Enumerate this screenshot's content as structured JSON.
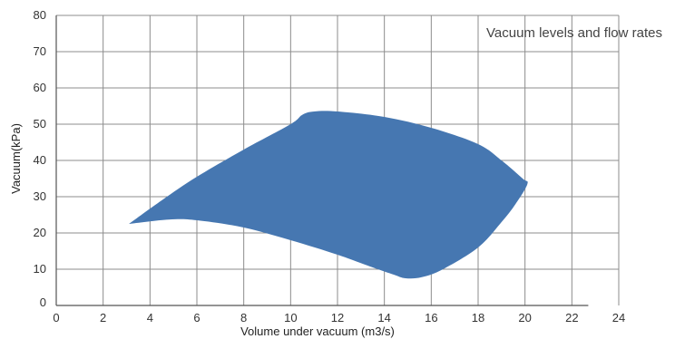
{
  "chart_data": {
    "type": "area",
    "title": "Vacuum levels and flow rates",
    "xlabel": "Volume under vacuum (m3/s)",
    "ylabel": "Vacuum(kPa)",
    "xlim": [
      0,
      24
    ],
    "ylim": [
      0,
      80
    ],
    "x_ticks": [
      "0",
      "2",
      "4",
      "6",
      "8",
      "10",
      "12",
      "14",
      "16",
      "18",
      "20",
      "22",
      "24"
    ],
    "y_ticks": [
      "0",
      "10",
      "20",
      "30",
      "40",
      "50",
      "60",
      "70",
      "80"
    ],
    "grid": true,
    "fill_color": "#4677b1",
    "grid_color": "#8c8c8c",
    "series": [
      {
        "upper_boundary": [
          [
            3.1,
            22.5
          ],
          [
            4.5,
            29
          ],
          [
            6,
            35.5
          ],
          [
            8,
            43
          ],
          [
            10,
            50
          ],
          [
            10.5,
            52.6
          ],
          [
            11,
            53.5
          ],
          [
            12,
            53.5
          ],
          [
            14,
            52
          ],
          [
            16,
            49
          ],
          [
            18,
            44.5
          ],
          [
            19,
            40
          ],
          [
            19.9,
            35
          ],
          [
            20.1,
            33.5
          ]
        ],
        "lower_boundary": [
          [
            20.1,
            33.5
          ],
          [
            19.6,
            28
          ],
          [
            19,
            23
          ],
          [
            18,
            16
          ],
          [
            16.5,
            10
          ],
          [
            15.6,
            7.8
          ],
          [
            14.9,
            7.5
          ],
          [
            14.4,
            8.5
          ],
          [
            13.5,
            10.5
          ],
          [
            12,
            14
          ],
          [
            10,
            18
          ],
          [
            8,
            21.5
          ],
          [
            6,
            23.5
          ],
          [
            4.8,
            23.7
          ],
          [
            3.1,
            22.5
          ]
        ]
      }
    ]
  }
}
